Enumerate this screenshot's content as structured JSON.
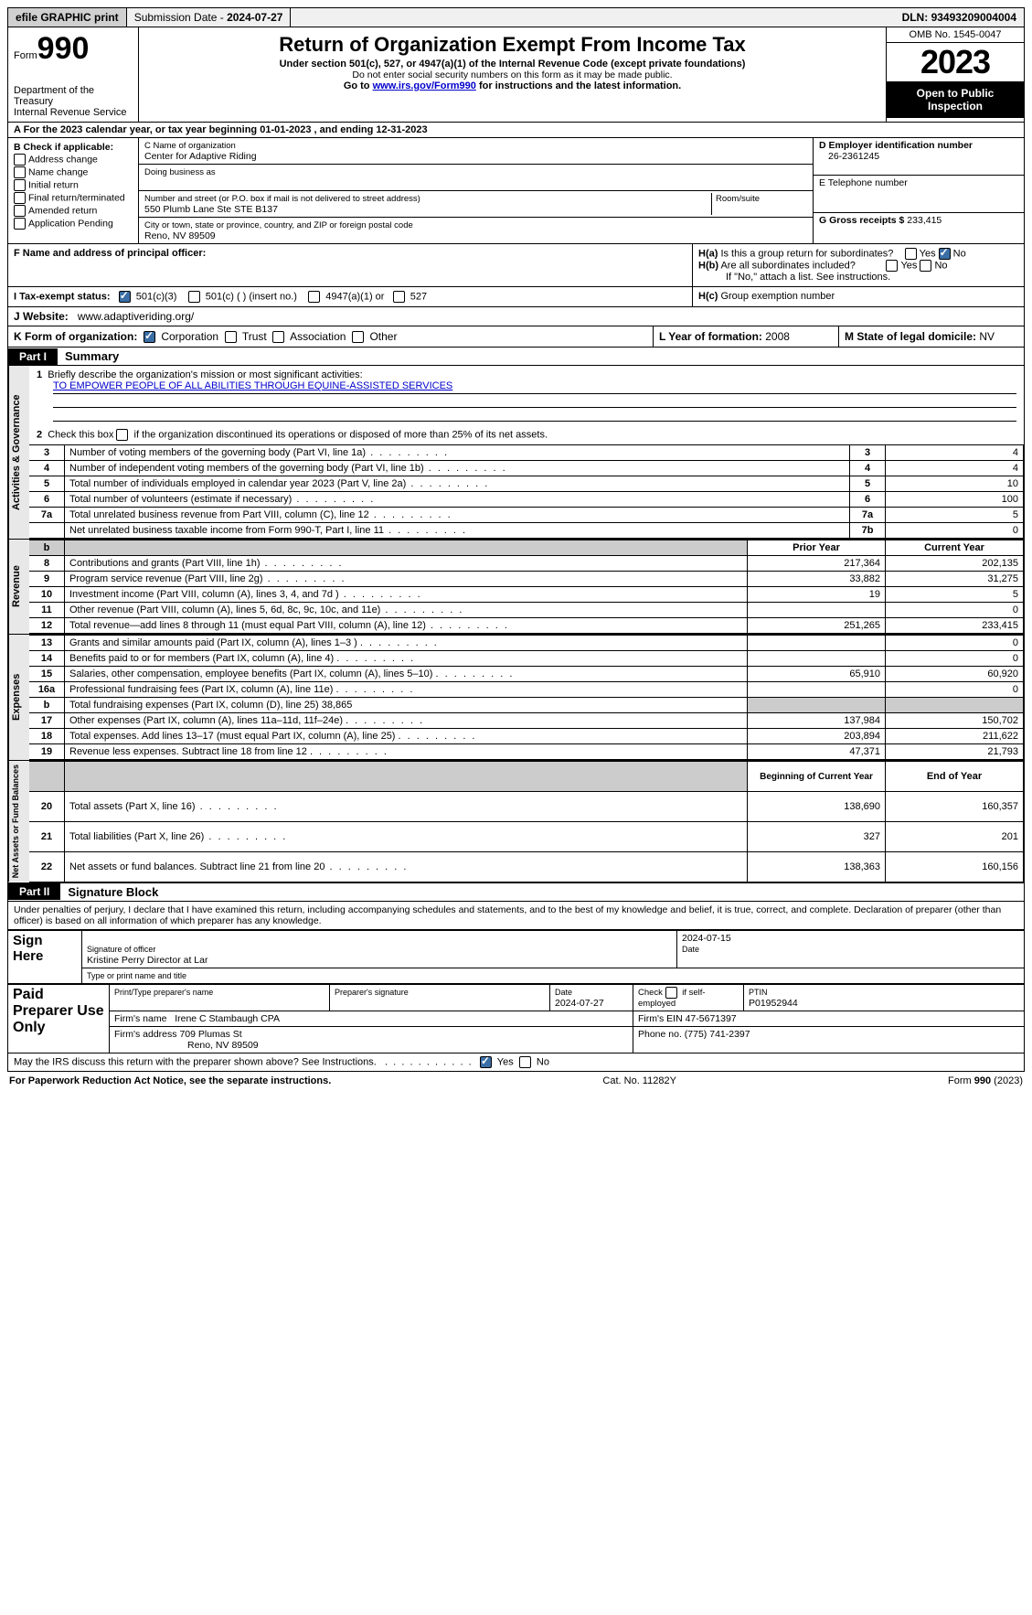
{
  "topbar": {
    "efile": "efile GRAPHIC print",
    "subdate_label": "Submission Date - ",
    "subdate": "2024-07-27",
    "dln_label": "DLN: ",
    "dln": "93493209004004"
  },
  "header": {
    "form_prefix": "Form",
    "form_no": "990",
    "dept1": "Department of the Treasury",
    "dept2": "Internal Revenue Service",
    "title": "Return of Organization Exempt From Income Tax",
    "sub1": "Under section 501(c), 527, or 4947(a)(1) of the Internal Revenue Code (except private foundations)",
    "sub2": "Do not enter social security numbers on this form as it may be made public.",
    "sub3_pre": "Go to ",
    "sub3_link": "www.irs.gov/Form990",
    "sub3_post": " for instructions and the latest information.",
    "omb": "OMB No. 1545-0047",
    "year": "2023",
    "open1": "Open to Public",
    "open2": "Inspection"
  },
  "calendar": {
    "text_a": "A For the 2023 calendar year, or tax year beginning ",
    "begin": "01-01-2023",
    "text_b": " , and ending ",
    "end": "12-31-2023"
  },
  "colB": {
    "title": "B Check if applicable:",
    "items": [
      "Address change",
      "Name change",
      "Initial return",
      "Final return/terminated",
      "Amended return",
      "Application Pending"
    ]
  },
  "orgC": {
    "name_lbl": "C Name of organization",
    "name": "Center for Adaptive Riding",
    "dba_lbl": "Doing business as",
    "dba": "",
    "addr_lbl": "Number and street (or P.O. box if mail is not delivered to street address)",
    "addr": "550 Plumb Lane Ste STE B137",
    "room_lbl": "Room/suite",
    "city_lbl": "City or town, state or province, country, and ZIP or foreign postal code",
    "city": "Reno, NV  89509"
  },
  "colD": {
    "ein_lbl": "D Employer identification number",
    "ein": "26-2361245",
    "tel_lbl": "E Telephone number",
    "tel": "",
    "gross_lbl": "G Gross receipts $ ",
    "gross": "233,415"
  },
  "blockF": {
    "lbl": "F  Name and address of principal officer:",
    "val": ""
  },
  "blockH": {
    "ha": "H(a)  Is this a group return for subordinates?",
    "hb": "H(b)  Are all subordinates included?",
    "hb_note": "If \"No,\" attach a list. See instructions.",
    "hc": "H(c)  Group exemption number ",
    "yes": "Yes",
    "no": "No"
  },
  "blockI": {
    "lbl": "I  Tax-exempt status:",
    "o1": "501(c)(3)",
    "o2": "501(c) (  ) (insert no.)",
    "o3": "4947(a)(1) or",
    "o4": "527"
  },
  "blockJ": {
    "lbl": "J  Website:",
    "val": "www.adaptiveriding.org/"
  },
  "blockK": {
    "lbl": "K Form of organization:",
    "o1": "Corporation",
    "o2": "Trust",
    "o3": "Association",
    "o4": "Other"
  },
  "blockL": {
    "lbl": "L Year of formation: ",
    "val": "2008"
  },
  "blockM": {
    "lbl": "M State of legal domicile: ",
    "val": "NV"
  },
  "part1": {
    "tag": "Part I",
    "title": "Summary"
  },
  "summary": {
    "q1_lbl": "Briefly describe the organization's mission or most significant activities:",
    "q1_val": "TO EMPOWER PEOPLE OF ALL ABILITIES THROUGH EQUINE-ASSISTED SERVICES",
    "q2": "Check this box      if the organization discontinued its operations or disposed of more than 25% of its net assets.",
    "lines_gov": [
      {
        "n": "3",
        "d": "Number of voting members of the governing body (Part VI, line 1a)",
        "ln": "3",
        "v": "4"
      },
      {
        "n": "4",
        "d": "Number of independent voting members of the governing body (Part VI, line 1b)",
        "ln": "4",
        "v": "4"
      },
      {
        "n": "5",
        "d": "Total number of individuals employed in calendar year 2023 (Part V, line 2a)",
        "ln": "5",
        "v": "10"
      },
      {
        "n": "6",
        "d": "Total number of volunteers (estimate if necessary)",
        "ln": "6",
        "v": "100"
      },
      {
        "n": "7a",
        "d": "Total unrelated business revenue from Part VIII, column (C), line 12",
        "ln": "7a",
        "v": "5"
      },
      {
        "n": "",
        "d": "Net unrelated business taxable income from Form 990-T, Part I, line 11",
        "ln": "7b",
        "v": "0"
      }
    ],
    "col_prior": "Prior Year",
    "col_curr": "Current Year",
    "revenue": [
      {
        "n": "8",
        "d": "Contributions and grants (Part VIII, line 1h)",
        "p": "217,364",
        "c": "202,135"
      },
      {
        "n": "9",
        "d": "Program service revenue (Part VIII, line 2g)",
        "p": "33,882",
        "c": "31,275"
      },
      {
        "n": "10",
        "d": "Investment income (Part VIII, column (A), lines 3, 4, and 7d )",
        "p": "19",
        "c": "5"
      },
      {
        "n": "11",
        "d": "Other revenue (Part VIII, column (A), lines 5, 6d, 8c, 9c, 10c, and 11e)",
        "p": "",
        "c": "0"
      },
      {
        "n": "12",
        "d": "Total revenue—add lines 8 through 11 (must equal Part VIII, column (A), line 12)",
        "p": "251,265",
        "c": "233,415"
      }
    ],
    "expenses": [
      {
        "n": "13",
        "d": "Grants and similar amounts paid (Part IX, column (A), lines 1–3 )",
        "p": "",
        "c": "0"
      },
      {
        "n": "14",
        "d": "Benefits paid to or for members (Part IX, column (A), line 4)",
        "p": "",
        "c": "0"
      },
      {
        "n": "15",
        "d": "Salaries, other compensation, employee benefits (Part IX, column (A), lines 5–10)",
        "p": "65,910",
        "c": "60,920"
      },
      {
        "n": "16a",
        "d": "Professional fundraising fees (Part IX, column (A), line 11e)",
        "p": "",
        "c": "0"
      },
      {
        "n": "b",
        "d": "Total fundraising expenses (Part IX, column (D), line 25) 38,865",
        "p": "GREY",
        "c": "GREY"
      },
      {
        "n": "17",
        "d": "Other expenses (Part IX, column (A), lines 11a–11d, 11f–24e)",
        "p": "137,984",
        "c": "150,702"
      },
      {
        "n": "18",
        "d": "Total expenses. Add lines 13–17 (must equal Part IX, column (A), line 25)",
        "p": "203,894",
        "c": "211,622"
      },
      {
        "n": "19",
        "d": "Revenue less expenses. Subtract line 18 from line 12",
        "p": "47,371",
        "c": "21,793"
      }
    ],
    "col_begin": "Beginning of Current Year",
    "col_end": "End of Year",
    "netassets": [
      {
        "n": "20",
        "d": "Total assets (Part X, line 16)",
        "p": "138,690",
        "c": "160,357"
      },
      {
        "n": "21",
        "d": "Total liabilities (Part X, line 26)",
        "p": "327",
        "c": "201"
      },
      {
        "n": "22",
        "d": "Net assets or fund balances. Subtract line 21 from line 20",
        "p": "138,363",
        "c": "160,156"
      }
    ],
    "vlabels": {
      "gov": "Activities & Governance",
      "rev": "Revenue",
      "exp": "Expenses",
      "net": "Net Assets or Fund Balances"
    }
  },
  "part2": {
    "tag": "Part II",
    "title": "Signature Block"
  },
  "sig": {
    "decl": "Under penalties of perjury, I declare that I have examined this return, including accompanying schedules and statements, and to the best of my knowledge and belief, it is true, correct, and complete. Declaration of preparer (other than officer) is based on all information of which preparer has any knowledge.",
    "sign_here": "Sign Here",
    "sig_officer_lbl": "Signature of officer",
    "sig_date": "2024-07-15",
    "date_lbl": "Date",
    "officer_name": "Kristine Perry  Director at Lar",
    "type_name_lbl": "Type or print name and title",
    "paid": "Paid Preparer Use Only",
    "prep_name_lbl": "Print/Type preparer's name",
    "prep_sig_lbl": "Preparer's signature",
    "prep_date_lbl": "Date",
    "prep_date": "2024-07-27",
    "check_self": "Check         if self-employed",
    "ptin_lbl": "PTIN",
    "ptin": "P01952944",
    "firm_name_lbl": "Firm's name   ",
    "firm_name": "Irene C Stambaugh CPA",
    "firm_ein_lbl": "Firm's EIN  ",
    "firm_ein": "47-5671397",
    "firm_addr_lbl": "Firm's address ",
    "firm_addr1": "709 Plumas St",
    "firm_addr2": "Reno, NV  89509",
    "phone_lbl": "Phone no. ",
    "phone": "(775) 741-2397",
    "discuss": "May the IRS discuss this return with the preparer shown above? See Instructions."
  },
  "footer": {
    "left": "For Paperwork Reduction Act Notice, see the separate instructions.",
    "mid": "Cat. No. 11282Y",
    "right_a": "Form ",
    "right_b": "990",
    "right_c": " (2023)"
  }
}
